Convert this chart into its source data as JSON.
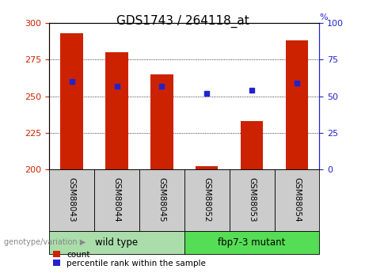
{
  "title": "GDS1743 / 264118_at",
  "samples": [
    "GSM88043",
    "GSM88044",
    "GSM88045",
    "GSM88052",
    "GSM88053",
    "GSM88054"
  ],
  "counts": [
    293,
    280,
    265,
    202,
    233,
    288
  ],
  "percentile_ranks": [
    60,
    57,
    57,
    52,
    54,
    59
  ],
  "ylim_left": [
    200,
    300
  ],
  "ylim_right": [
    0,
    100
  ],
  "yticks_left": [
    200,
    225,
    250,
    275,
    300
  ],
  "yticks_right": [
    0,
    25,
    50,
    75,
    100
  ],
  "bar_color": "#CC2200",
  "dot_color": "#2222CC",
  "groups": [
    {
      "label": "wild type",
      "indices": [
        0,
        1,
        2
      ],
      "color": "#AADDAA"
    },
    {
      "label": "fbp7-3 mutant",
      "indices": [
        3,
        4,
        5
      ],
      "color": "#55DD55"
    }
  ],
  "group_label": "genotype/variation",
  "legend_count_label": "count",
  "legend_pct_label": "percentile rank within the sample",
  "title_fontsize": 11,
  "tick_fontsize": 8,
  "bar_width": 0.5,
  "sample_box_bg": "#CCCCCC"
}
